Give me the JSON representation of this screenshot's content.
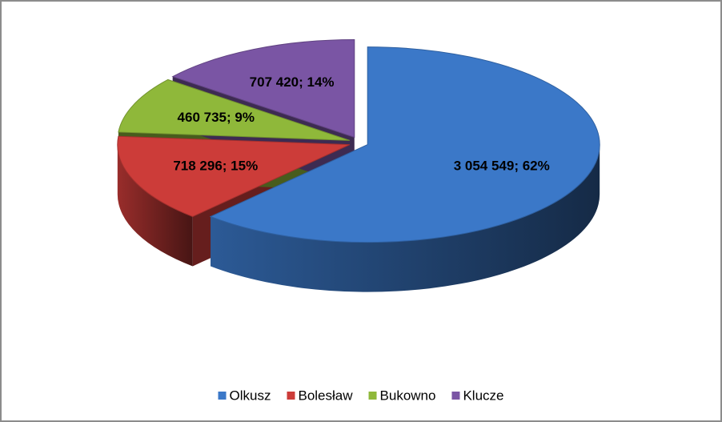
{
  "chart_data": {
    "type": "pie",
    "categories": [
      "Olkusz",
      "Bolesław",
      "Bukowno",
      "Klucze"
    ],
    "values": [
      3054549,
      718296,
      460735,
      707420
    ],
    "value_labels": [
      "3 054 549; 62%",
      "718 296; 15%",
      "460 735; 9%",
      "707 420; 14%"
    ],
    "colors": [
      "#3b78c8",
      "#cc3c39",
      "#8fb83a",
      "#7a55a4"
    ],
    "legend": "bottom"
  }
}
